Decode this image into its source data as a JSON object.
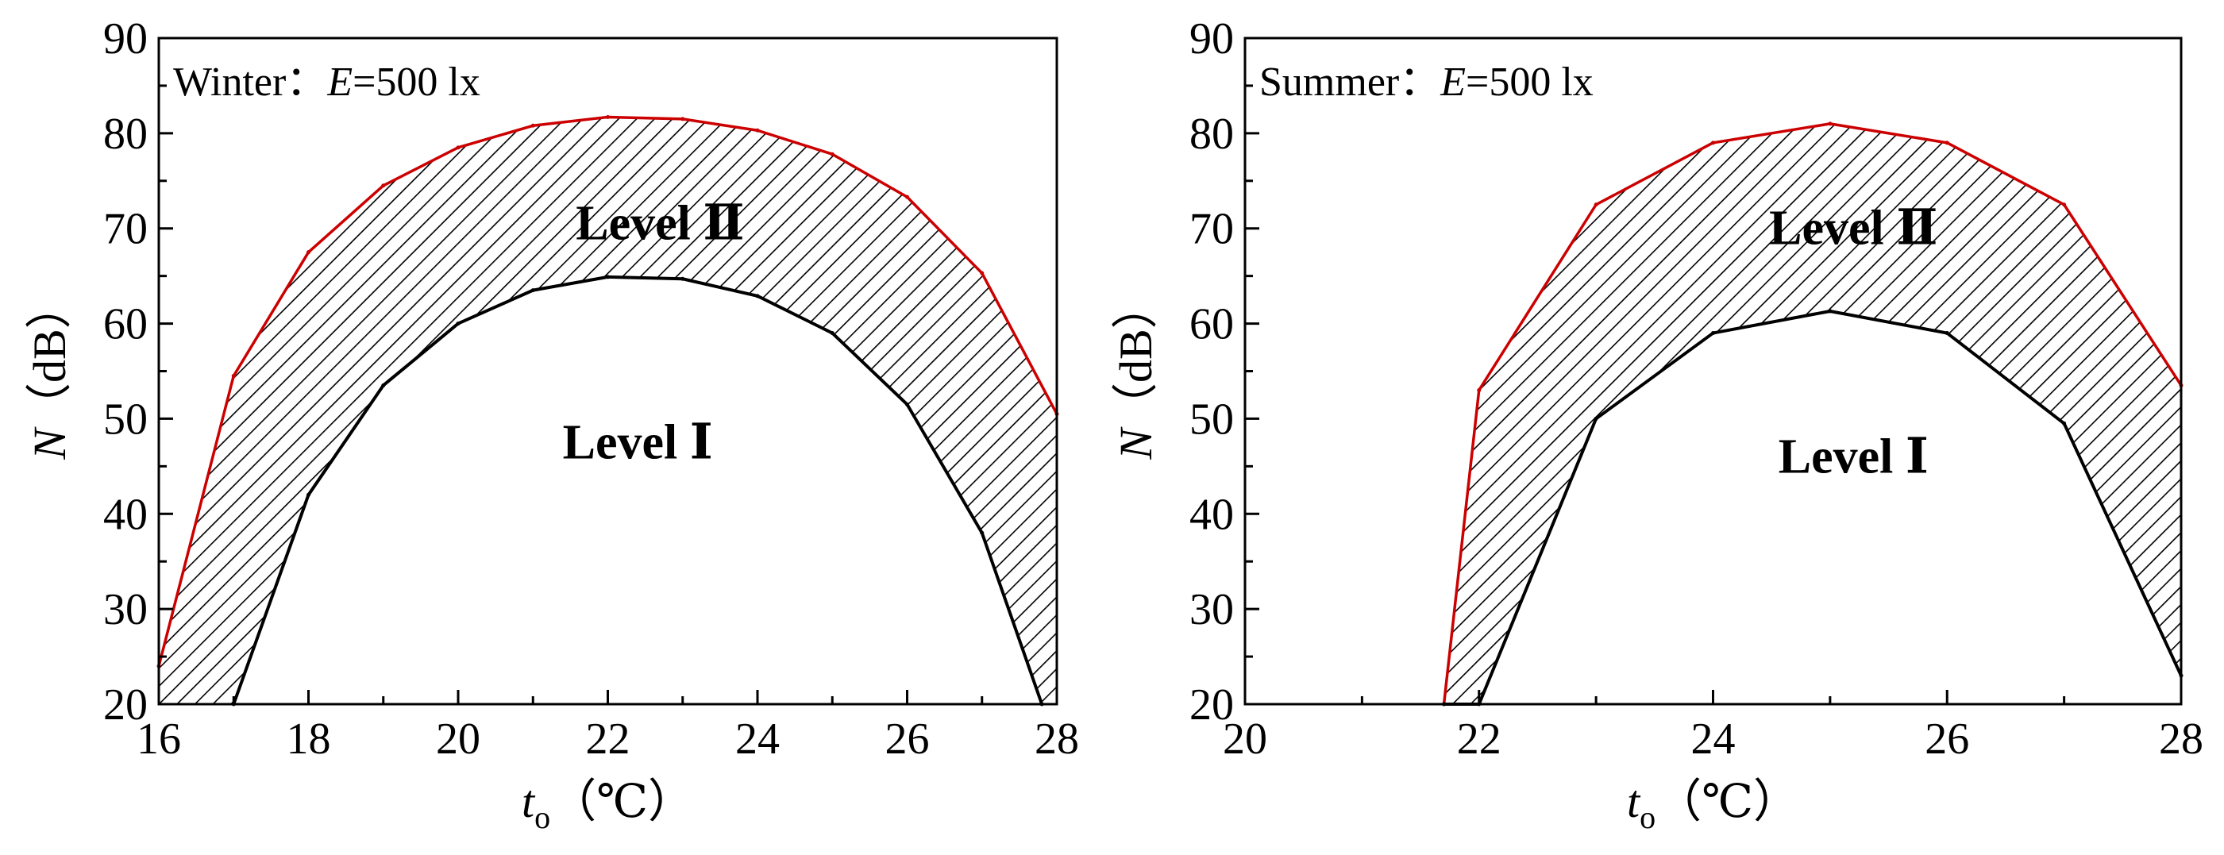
{
  "chart_data": [
    {
      "type": "area",
      "annotation": {
        "season": "Winter",
        "separator": "：",
        "var": "E",
        "value": "=500 lx"
      },
      "xlabel": {
        "var": "t",
        "sub": "o",
        "unit": "（℃）"
      },
      "ylabel": {
        "var": "N",
        "unit": "（dB）"
      },
      "xlim": [
        16,
        28
      ],
      "ylim": [
        20,
        90
      ],
      "xticks": [
        "16",
        "18",
        "20",
        "22",
        "24",
        "26",
        "28"
      ],
      "yticks": [
        "20",
        "30",
        "40",
        "50",
        "60",
        "70",
        "80",
        "90"
      ],
      "grid": false,
      "region_labels": {
        "upper": {
          "text": "Level Ⅱ",
          "x": 22.7,
          "y": 70.5
        },
        "lower": {
          "text": "Level Ⅰ",
          "x": 22.4,
          "y": 47.5
        }
      },
      "series": [
        {
          "role": "upper-boundary",
          "x": [
            16,
            17,
            18,
            19,
            20,
            21,
            22,
            23,
            24,
            25,
            26,
            27,
            28
          ],
          "y": [
            24,
            54.5,
            67.5,
            74.5,
            78.5,
            80.8,
            81.7,
            81.5,
            80.3,
            77.8,
            73.3,
            65.3,
            50.5
          ]
        },
        {
          "role": "lower-boundary",
          "x": [
            17,
            18,
            19,
            20,
            21,
            22,
            23,
            24,
            25,
            26,
            27,
            27.8
          ],
          "y": [
            20,
            42,
            53.5,
            60,
            63.5,
            64.9,
            64.7,
            62.9,
            59,
            51.5,
            38,
            20
          ]
        }
      ],
      "colors": {
        "upper_line": "#cc0000",
        "lower_line": "#000000",
        "hatch": "#000000"
      }
    },
    {
      "type": "area",
      "annotation": {
        "season": "Summer",
        "separator": "：",
        "var": "E",
        "value": "=500 lx"
      },
      "xlabel": {
        "var": "t",
        "sub": "o",
        "unit": "（℃）"
      },
      "ylabel": {
        "var": "N",
        "unit": "（dB）"
      },
      "xlim": [
        20,
        28
      ],
      "ylim": [
        20,
        90
      ],
      "xticks": [
        "20",
        "22",
        "24",
        "26",
        "28"
      ],
      "yticks": [
        "20",
        "30",
        "40",
        "50",
        "60",
        "70",
        "80",
        "90"
      ],
      "grid": false,
      "region_labels": {
        "upper": {
          "text": "Level Ⅱ",
          "x": 25.2,
          "y": 70
        },
        "lower": {
          "text": "Level Ⅰ",
          "x": 25.2,
          "y": 46
        }
      },
      "series": [
        {
          "role": "upper-boundary",
          "x": [
            21.7,
            22,
            23,
            24,
            25,
            26,
            27,
            28
          ],
          "y": [
            20,
            53,
            72.5,
            79,
            81,
            79,
            72.5,
            53.5
          ]
        },
        {
          "role": "lower-boundary",
          "x": [
            21.7,
            22,
            23,
            24,
            25,
            26,
            27,
            28
          ],
          "y": [
            20,
            20,
            50,
            59,
            61.3,
            59,
            49.5,
            23
          ]
        }
      ],
      "colors": {
        "upper_line": "#cc0000",
        "lower_line": "#000000",
        "hatch": "#000000"
      }
    }
  ]
}
